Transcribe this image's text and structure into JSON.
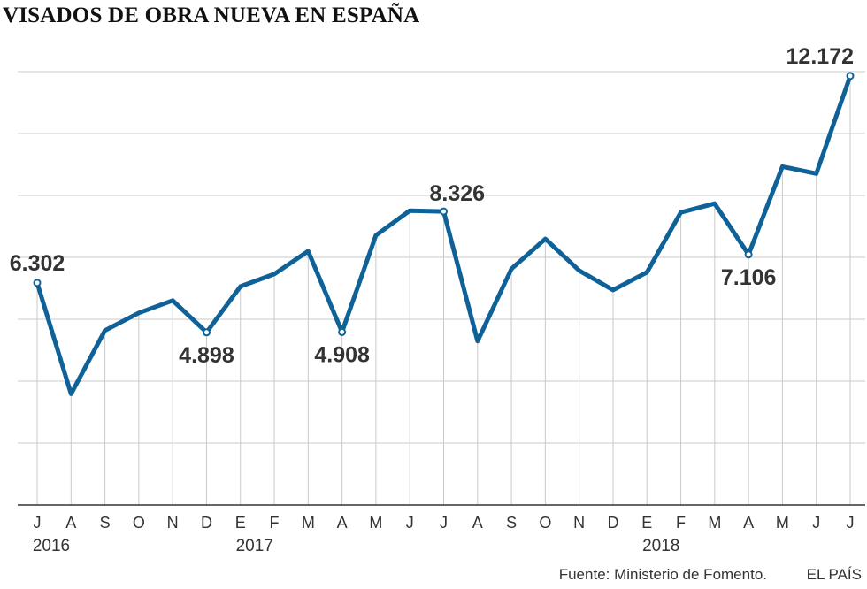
{
  "title": "VISADOS DE OBRA NUEVA EN ESPAÑA",
  "footer": {
    "source": "Fuente: Ministerio de Fomento.",
    "brand": "EL PAÍS"
  },
  "colors": {
    "line": "#0f6298",
    "grid": "#c9c9c9",
    "axis": "#333333",
    "text": "#333333"
  },
  "chart_data": {
    "type": "line",
    "title": "VISADOS DE OBRA NUEVA EN ESPAÑA",
    "xlabel": "",
    "ylabel": "",
    "grid": true,
    "ylim": [
      0,
      14000
    ],
    "categories": [
      "J",
      "A",
      "S",
      "O",
      "N",
      "D",
      "E",
      "F",
      "M",
      "A",
      "M",
      "J",
      "J",
      "A",
      "S",
      "O",
      "N",
      "D",
      "E",
      "F",
      "M",
      "A",
      "M",
      "J",
      "J"
    ],
    "years": [
      {
        "label": "2016",
        "index": 0
      },
      {
        "label": "2017",
        "index": 6
      },
      {
        "label": "2018",
        "index": 18
      }
    ],
    "series": [
      {
        "values": [
          6302,
          3150,
          4950,
          5450,
          5800,
          4898,
          6200,
          6550,
          7200,
          4908,
          7650,
          8350,
          8326,
          4650,
          6700,
          7550,
          6650,
          6100,
          6600,
          8300,
          8550,
          7106,
          9600,
          9400,
          12172
        ]
      }
    ],
    "annotations": [
      {
        "index": 0,
        "label": "6.302",
        "pos": "above"
      },
      {
        "index": 5,
        "label": "4.898",
        "pos": "below"
      },
      {
        "index": 9,
        "label": "4.908",
        "pos": "below"
      },
      {
        "index": 12,
        "label": "8.326",
        "pos": "above-right"
      },
      {
        "index": 21,
        "label": "7.106",
        "pos": "below"
      },
      {
        "index": 24,
        "label": "12.172",
        "pos": "above-left"
      }
    ]
  }
}
